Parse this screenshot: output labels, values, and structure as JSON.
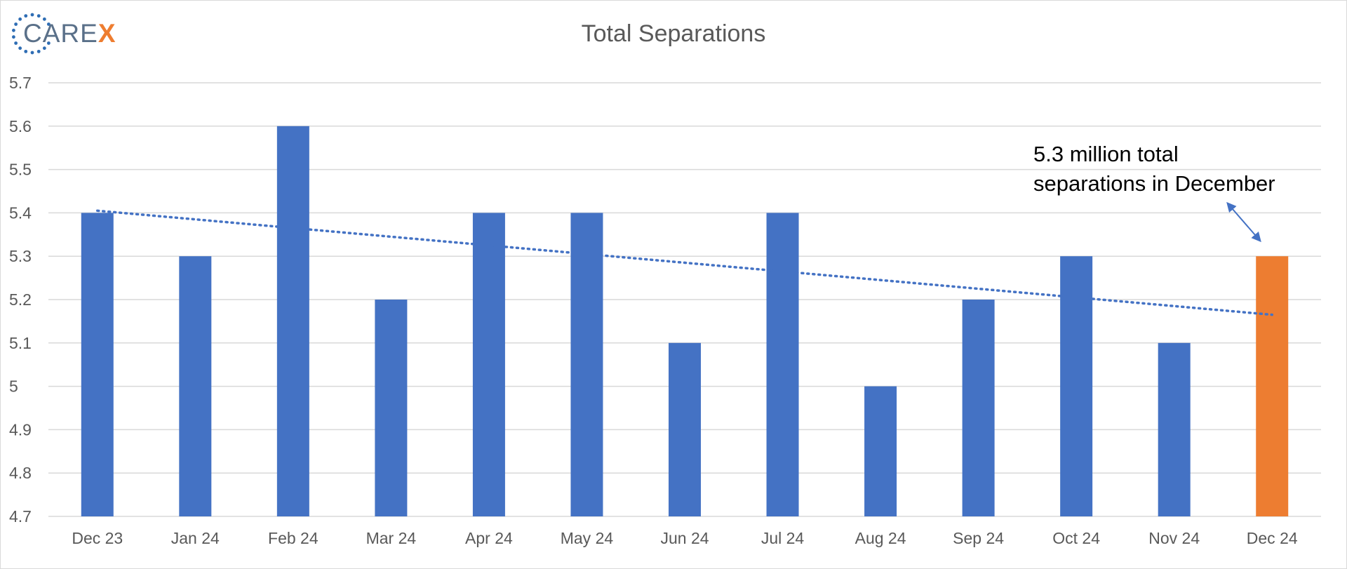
{
  "logo": {
    "text_main": "CARE",
    "text_accent": "X",
    "ring_color": "#2e6db4",
    "accent_color": "#ee7d30"
  },
  "chart_data": {
    "type": "bar",
    "title": "Total Separations",
    "xlabel": "",
    "ylabel": "",
    "categories": [
      "Dec 23",
      "Jan 24",
      "Feb 24",
      "Mar 24",
      "Apr 24",
      "May 24",
      "Jun 24",
      "Jul 24",
      "Aug 24",
      "Sep 24",
      "Oct 24",
      "Nov 24",
      "Dec 24"
    ],
    "values": [
      5.4,
      5.3,
      5.6,
      5.2,
      5.4,
      5.4,
      5.1,
      5.4,
      5.0,
      5.2,
      5.3,
      5.1,
      5.3
    ],
    "ylim": [
      4.7,
      5.7
    ],
    "yticks": [
      "4.7",
      "4.8",
      "4.9",
      "5",
      "5.1",
      "5.2",
      "5.3",
      "5.4",
      "5.5",
      "5.6",
      "5.7"
    ],
    "bar_color": "#4472c4",
    "highlight_color": "#ed7d31",
    "highlight_index": 12,
    "gridlines": true,
    "trendline": {
      "type": "linear",
      "style": "dotted",
      "color": "#4472c4",
      "start": 5.405,
      "end": 5.165
    },
    "annotation": "5.3 million total separations in December"
  }
}
